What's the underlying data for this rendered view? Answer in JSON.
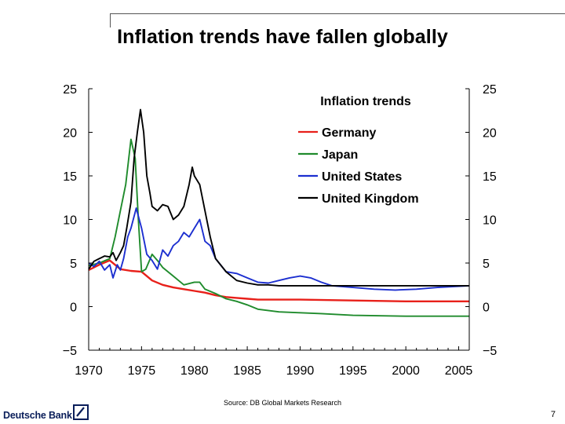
{
  "slide": {
    "title": "Inflation trends have fallen globally",
    "source": "Source: DB Global Markets Research",
    "brand": "Deutsche Bank",
    "page_number": "7"
  },
  "chart_data": {
    "type": "line",
    "title": "Inflation trends",
    "xlabel": "",
    "ylabel": "",
    "xlim": [
      1970,
      2006
    ],
    "ylim": [
      -5,
      25
    ],
    "x_ticks": [
      1970,
      1975,
      1980,
      1985,
      1990,
      1995,
      2000,
      2005
    ],
    "y_ticks": [
      -5,
      0,
      5,
      10,
      15,
      20,
      25
    ],
    "y_tick_labels": [
      "−5",
      "0",
      "5",
      "10",
      "15",
      "20",
      "25"
    ],
    "legend_position": "top-center",
    "series": [
      {
        "name": "Germany",
        "color": "#e8201a",
        "points": [
          [
            1970,
            4.2
          ],
          [
            1971,
            4.8
          ],
          [
            1972,
            5.3
          ],
          [
            1973,
            4.3
          ],
          [
            1974,
            4.1
          ],
          [
            1975,
            4.0
          ],
          [
            1976,
            3.0
          ],
          [
            1977,
            2.5
          ],
          [
            1978,
            2.2
          ],
          [
            1979,
            2.0
          ],
          [
            1980,
            1.8
          ],
          [
            1981,
            1.6
          ],
          [
            1982,
            1.3
          ],
          [
            1983,
            1.1
          ],
          [
            1984,
            1.0
          ],
          [
            1985,
            0.9
          ],
          [
            1986,
            0.8
          ],
          [
            1988,
            0.8
          ],
          [
            1990,
            0.8
          ],
          [
            1995,
            0.7
          ],
          [
            2000,
            0.6
          ],
          [
            2006,
            0.6
          ]
        ]
      },
      {
        "name": "Japan",
        "color": "#1f8b2c",
        "points": [
          [
            1970,
            4.7
          ],
          [
            1971,
            5.0
          ],
          [
            1972,
            5.5
          ],
          [
            1972.5,
            8.0
          ],
          [
            1973,
            11.0
          ],
          [
            1973.5,
            14.0
          ],
          [
            1974,
            19.2
          ],
          [
            1974.4,
            17.0
          ],
          [
            1974.7,
            10.0
          ],
          [
            1975,
            4.0
          ],
          [
            1975.4,
            4.3
          ],
          [
            1976,
            6.0
          ],
          [
            1976.5,
            5.3
          ],
          [
            1977,
            4.5
          ],
          [
            1978,
            3.5
          ],
          [
            1979,
            2.5
          ],
          [
            1980,
            2.8
          ],
          [
            1980.5,
            2.8
          ],
          [
            1981,
            2.0
          ],
          [
            1982,
            1.5
          ],
          [
            1983,
            0.9
          ],
          [
            1984,
            0.6
          ],
          [
            1985,
            0.2
          ],
          [
            1986,
            -0.3
          ],
          [
            1988,
            -0.6
          ],
          [
            1990,
            -0.7
          ],
          [
            1992,
            -0.8
          ],
          [
            1995,
            -1.0
          ],
          [
            2000,
            -1.1
          ],
          [
            2006,
            -1.1
          ]
        ]
      },
      {
        "name": "United States",
        "color": "#1c2fd0",
        "points": [
          [
            1970,
            5.0
          ],
          [
            1970.5,
            4.6
          ],
          [
            1971,
            5.2
          ],
          [
            1971.5,
            4.2
          ],
          [
            1972,
            4.8
          ],
          [
            1972.3,
            3.3
          ],
          [
            1972.7,
            4.8
          ],
          [
            1973,
            4.2
          ],
          [
            1973.3,
            5.5
          ],
          [
            1973.7,
            8.0
          ],
          [
            1974,
            9.0
          ],
          [
            1974.5,
            11.3
          ],
          [
            1975,
            9.0
          ],
          [
            1975.5,
            6.0
          ],
          [
            1976,
            5.3
          ],
          [
            1976.5,
            4.3
          ],
          [
            1977,
            6.5
          ],
          [
            1977.5,
            5.8
          ],
          [
            1978,
            7.0
          ],
          [
            1978.5,
            7.5
          ],
          [
            1979,
            8.5
          ],
          [
            1979.5,
            8.0
          ],
          [
            1980,
            9.0
          ],
          [
            1980.5,
            10.0
          ],
          [
            1981,
            7.5
          ],
          [
            1981.5,
            7.0
          ],
          [
            1982,
            5.5
          ],
          [
            1983,
            4.0
          ],
          [
            1984,
            3.8
          ],
          [
            1985,
            3.3
          ],
          [
            1986,
            2.8
          ],
          [
            1987,
            2.7
          ],
          [
            1988,
            3.0
          ],
          [
            1989,
            3.3
          ],
          [
            1990,
            3.5
          ],
          [
            1991,
            3.3
          ],
          [
            1992,
            2.8
          ],
          [
            1993,
            2.4
          ],
          [
            1995,
            2.2
          ],
          [
            1997,
            2.0
          ],
          [
            1999,
            1.9
          ],
          [
            2001,
            2.0
          ],
          [
            2003,
            2.2
          ],
          [
            2006,
            2.4
          ]
        ]
      },
      {
        "name": "United Kingdom",
        "color": "#000000",
        "points": [
          [
            1970,
            4.3
          ],
          [
            1970.5,
            5.2
          ],
          [
            1971,
            5.5
          ],
          [
            1971.5,
            5.8
          ],
          [
            1972,
            5.7
          ],
          [
            1972.3,
            6.2
          ],
          [
            1972.6,
            5.3
          ],
          [
            1973,
            6.2
          ],
          [
            1973.3,
            7.0
          ],
          [
            1973.6,
            9.0
          ],
          [
            1974,
            12.0
          ],
          [
            1974.3,
            17.0
          ],
          [
            1974.6,
            20.0
          ],
          [
            1974.9,
            22.6
          ],
          [
            1975.2,
            20.0
          ],
          [
            1975.5,
            15.0
          ],
          [
            1975.8,
            13.0
          ],
          [
            1976,
            11.5
          ],
          [
            1976.5,
            11.0
          ],
          [
            1977,
            11.7
          ],
          [
            1977.5,
            11.5
          ],
          [
            1978,
            10.0
          ],
          [
            1978.5,
            10.5
          ],
          [
            1979,
            11.5
          ],
          [
            1979.5,
            14.0
          ],
          [
            1979.8,
            16.0
          ],
          [
            1980,
            15.0
          ],
          [
            1980.5,
            14.0
          ],
          [
            1981,
            11.0
          ],
          [
            1981.5,
            8.0
          ],
          [
            1982,
            5.5
          ],
          [
            1983,
            4.0
          ],
          [
            1984,
            3.0
          ],
          [
            1985,
            2.7
          ],
          [
            1986,
            2.5
          ],
          [
            1987,
            2.5
          ],
          [
            1988,
            2.4
          ],
          [
            1990,
            2.4
          ],
          [
            1995,
            2.4
          ],
          [
            2000,
            2.4
          ],
          [
            2006,
            2.4
          ]
        ]
      }
    ]
  }
}
